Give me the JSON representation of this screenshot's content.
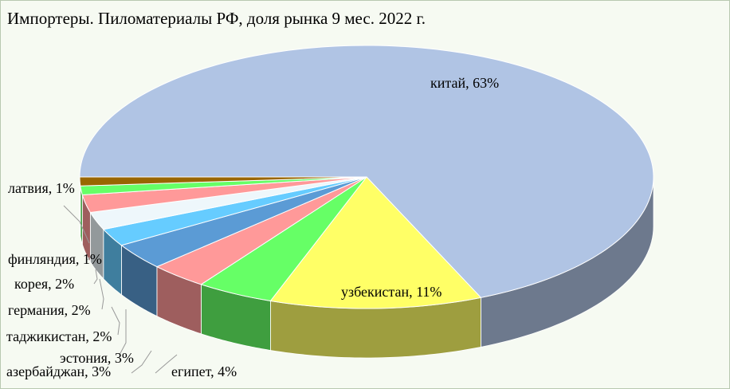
{
  "chart_data": {
    "type": "pie3d",
    "title": "Импортеры. Пиломатериалы РФ, доля рынка 9 мес. 2022 г.",
    "values": [
      63,
      11,
      4,
      3,
      3,
      2,
      2,
      2,
      1,
      1
    ],
    "labels": [
      "китай, 63%",
      "узбекистан, 11%",
      "египет, 4%",
      "азербайджан, 3%",
      "эстония, 3%",
      "таджикистан, 2%",
      "германия, 2%",
      "корея, 2%",
      "финляндия, 1%",
      "латвия, 1%"
    ],
    "colors": [
      "#b0c4e4",
      "#ffff66",
      "#66ff66",
      "#ff9999",
      "#5b9bd5",
      "#66ccff",
      "#eef7fb",
      "#ff9999",
      "#66ff66",
      "#996600"
    ]
  }
}
